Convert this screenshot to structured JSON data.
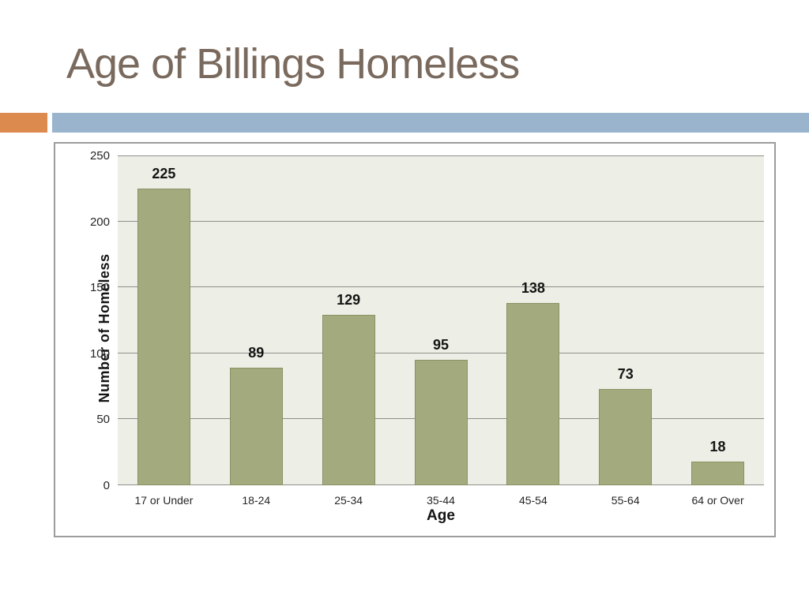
{
  "slide": {
    "title": "Age of Billings Homeless",
    "title_color": "#7a6a5e",
    "background_color": "#ffffff"
  },
  "accents": {
    "orange_bar_color": "#dd8a4e",
    "blue_bar_color": "#9ab4ce"
  },
  "chart_data": {
    "type": "bar",
    "title": "",
    "categories": [
      "17 or Under",
      "18-24",
      "25-34",
      "35-44",
      "45-54",
      "55-64",
      "64 or Over"
    ],
    "values": [
      225,
      89,
      129,
      95,
      138,
      73,
      18
    ],
    "value_labels": [
      "225",
      "89",
      "129",
      "95",
      "138",
      "73",
      "18"
    ],
    "xlabel": "Age",
    "ylabel": "Number of Homeless",
    "ylim": [
      0,
      250
    ],
    "yticks": [
      0,
      50,
      100,
      150,
      200,
      250
    ],
    "grid": true,
    "legend": false,
    "bar_color": "#a3aa7d",
    "bar_border_color": "#8b9163",
    "plot_bg_color": "#edeee5",
    "gridline_color": "#8f8f8b",
    "axis_text_color": "#262626"
  }
}
